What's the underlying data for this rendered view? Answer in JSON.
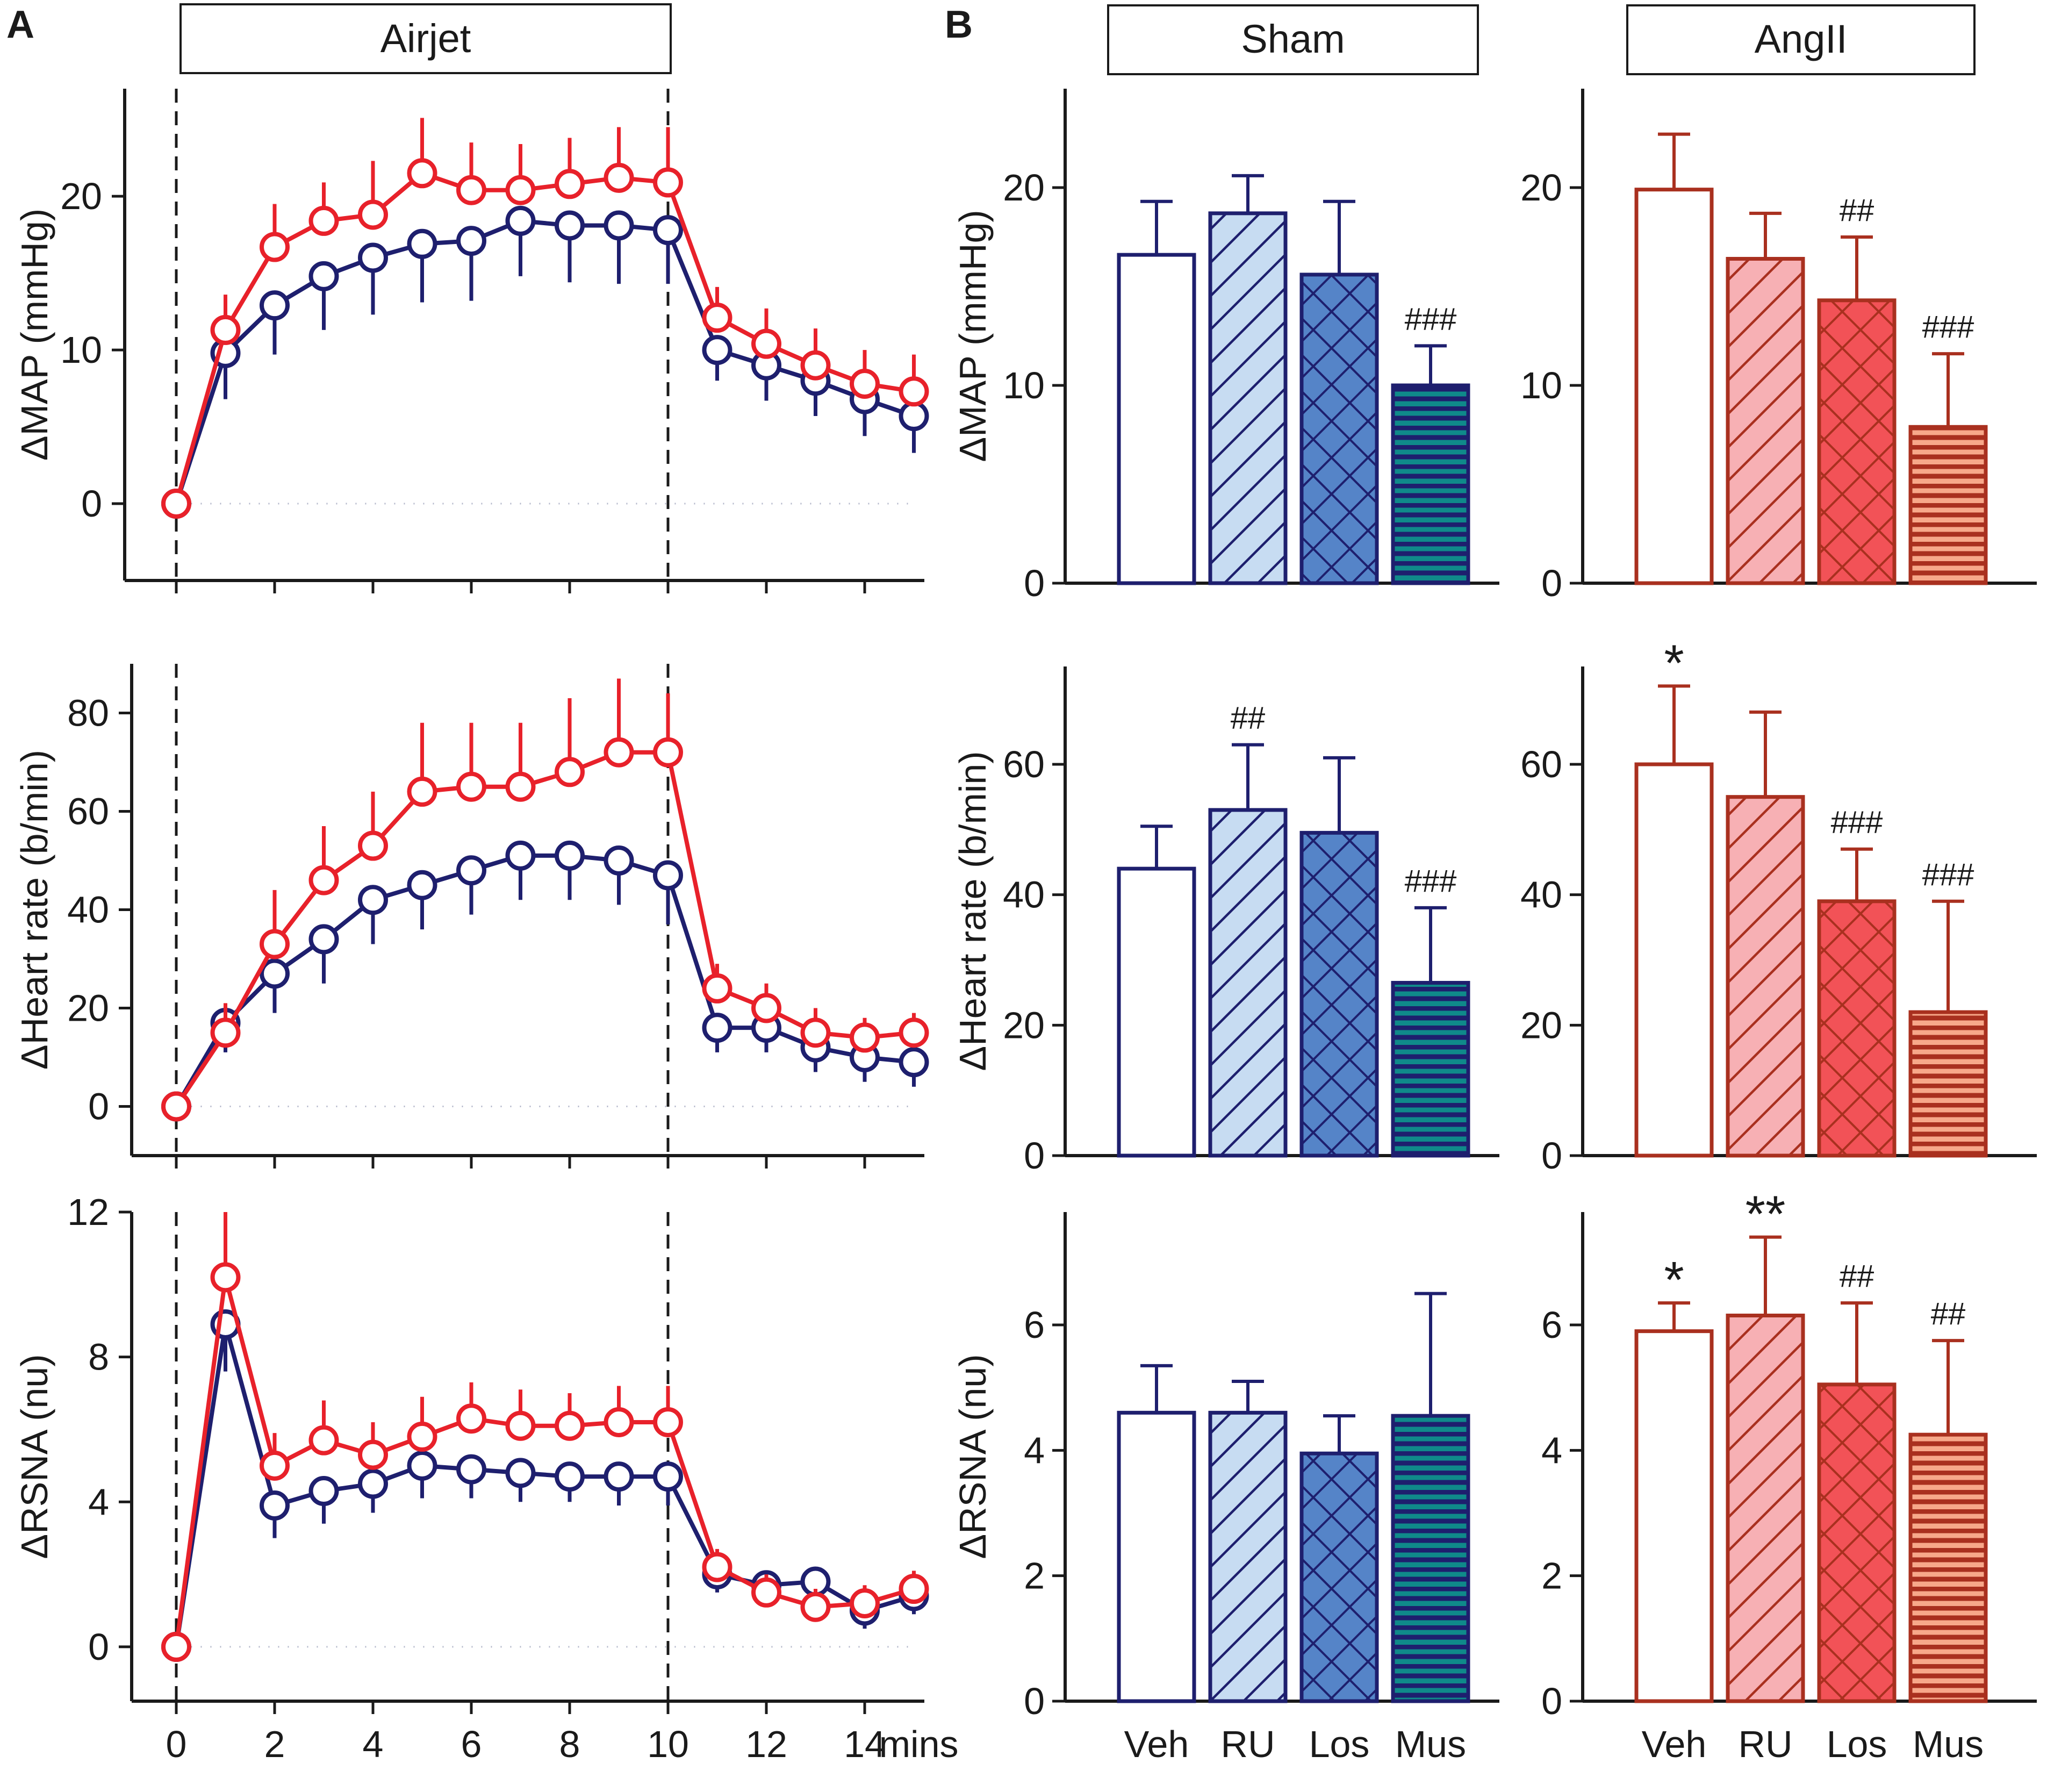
{
  "panels": {
    "A": "A",
    "B": "B"
  },
  "headers": {
    "airjet": "Airjet",
    "sham": "Sham",
    "angii": "AngII"
  },
  "colors": {
    "angii": "#e8212a",
    "sham": "#1e1f6e",
    "angii_bar_edge": "#a9301f",
    "sham_bar_edge": "#1e1f6e"
  },
  "chart_data": [
    {
      "id": "A-map",
      "type": "line",
      "title": "",
      "xlabel": "mins",
      "ylabel": "ΔMAP (mmHg)",
      "xlim": [
        -1,
        15.2
      ],
      "ylim": [
        -5,
        27
      ],
      "x_ticks": [
        0,
        2,
        4,
        6,
        8,
        10,
        12,
        14
      ],
      "x_tick_labels": [],
      "y_ticks": [
        0,
        10,
        20
      ],
      "y_tick_labels": [
        "0",
        "10",
        "20"
      ],
      "stimulus_on": 0,
      "stimulus_off": 10,
      "x": [
        0,
        1,
        2,
        3,
        4,
        5,
        6,
        7,
        8,
        9,
        10,
        11,
        12,
        13,
        14,
        15
      ],
      "series": [
        {
          "name": "Sham",
          "color_key": "sham",
          "err_dir": -1,
          "values": [
            0,
            9.8,
            12.9,
            14.8,
            16.0,
            16.9,
            17.1,
            18.4,
            18.1,
            18.1,
            17.8,
            10.0,
            9.0,
            8.0,
            6.8,
            5.7
          ],
          "errors": [
            0,
            3.0,
            3.2,
            3.5,
            3.7,
            3.8,
            3.9,
            3.6,
            3.7,
            3.8,
            3.5,
            2.0,
            2.3,
            2.3,
            2.4,
            2.4
          ]
        },
        {
          "name": "AngII",
          "color_key": "angii",
          "err_dir": 1,
          "values": [
            0,
            11.3,
            16.7,
            18.4,
            18.8,
            21.5,
            20.4,
            20.4,
            20.8,
            21.2,
            20.9,
            12.1,
            10.4,
            9.0,
            7.8,
            7.3
          ],
          "errors": [
            0,
            2.3,
            2.8,
            2.5,
            3.5,
            3.6,
            3.1,
            3.0,
            3.0,
            3.3,
            3.6,
            2.0,
            2.3,
            2.4,
            2.2,
            2.4
          ]
        }
      ]
    },
    {
      "id": "A-hr",
      "type": "line",
      "title": "",
      "xlabel": "mins",
      "ylabel": "ΔHeart rate (b/min)",
      "xlim": [
        -1,
        15.2
      ],
      "ylim": [
        -10,
        90
      ],
      "x_ticks": [
        0,
        2,
        4,
        6,
        8,
        10,
        12,
        14
      ],
      "x_tick_labels": [],
      "y_ticks": [
        0,
        20,
        40,
        60,
        80
      ],
      "y_tick_labels": [
        "0",
        "20",
        "40",
        "60",
        "80"
      ],
      "stimulus_on": 0,
      "stimulus_off": 10,
      "x": [
        0,
        1,
        2,
        3,
        4,
        5,
        6,
        7,
        8,
        9,
        10,
        11,
        12,
        13,
        14,
        15
      ],
      "series": [
        {
          "name": "Sham",
          "color_key": "sham",
          "err_dir": -1,
          "values": [
            0,
            17,
            27,
            34,
            42,
            45,
            48,
            51,
            51,
            50,
            47,
            16,
            16,
            12,
            10,
            9
          ],
          "errors": [
            0,
            6,
            8,
            9,
            9,
            9,
            9,
            9,
            9,
            9,
            10,
            5,
            5,
            5,
            5,
            5
          ]
        },
        {
          "name": "AngII",
          "color_key": "angii",
          "err_dir": 1,
          "values": [
            0,
            15,
            33,
            46,
            53,
            64,
            65,
            65,
            68,
            72,
            72,
            24,
            20,
            15,
            14,
            15
          ],
          "errors": [
            0,
            6,
            11,
            11,
            11,
            14,
            13,
            13,
            15,
            15,
            12,
            5,
            5,
            5,
            4,
            4
          ]
        }
      ]
    },
    {
      "id": "A-rsna",
      "type": "line",
      "title": "",
      "xlabel": "mins",
      "ylabel": "ΔRSNA (nu)",
      "xlim": [
        -1,
        15.2
      ],
      "ylim": [
        -1.5,
        12
      ],
      "x_ticks": [
        0,
        2,
        4,
        6,
        8,
        10,
        12,
        14
      ],
      "x_tick_labels": [
        "0",
        "2",
        "4",
        "6",
        "8",
        "10",
        "12",
        "14"
      ],
      "x_unit_label": "mins",
      "y_ticks": [
        0,
        4,
        8,
        12
      ],
      "y_tick_labels": [
        "0",
        "4",
        "8",
        "12"
      ],
      "stimulus_on": 0,
      "stimulus_off": 10,
      "x": [
        0,
        1,
        2,
        3,
        4,
        5,
        6,
        7,
        8,
        9,
        10,
        11,
        12,
        13,
        14,
        15
      ],
      "series": [
        {
          "name": "Sham",
          "color_key": "sham",
          "err_dir": -1,
          "values": [
            0,
            8.9,
            3.9,
            4.3,
            4.5,
            5.0,
            4.9,
            4.8,
            4.7,
            4.7,
            4.7,
            2.0,
            1.7,
            1.8,
            1.0,
            1.4
          ],
          "errors": [
            0,
            1.3,
            0.9,
            0.9,
            0.8,
            0.9,
            0.8,
            0.8,
            0.7,
            0.8,
            0.8,
            0.5,
            0.5,
            0.5,
            0.5,
            0.5
          ]
        },
        {
          "name": "AngII",
          "color_key": "angii",
          "err_dir": 1,
          "values": [
            0,
            10.2,
            5.0,
            5.7,
            5.3,
            5.8,
            6.3,
            6.1,
            6.1,
            6.2,
            6.2,
            2.2,
            1.5,
            1.1,
            1.2,
            1.6
          ],
          "errors": [
            0,
            1.8,
            0.9,
            1.1,
            0.9,
            1.1,
            1.0,
            1.0,
            0.9,
            1.0,
            1.0,
            0.5,
            0.5,
            0.5,
            0.5,
            0.5
          ]
        }
      ]
    },
    {
      "id": "B-sham-map",
      "type": "bar",
      "group": "Sham",
      "ylabel": "ΔMAP (mmHg)",
      "ylim": [
        0,
        25
      ],
      "y_ticks": [
        0,
        10,
        20
      ],
      "y_tick_labels": [
        "0",
        "10",
        "20"
      ],
      "categories": [
        "Veh",
        "RU",
        "Los",
        "Mus"
      ],
      "show_categories": false,
      "values": [
        16.6,
        18.7,
        15.6,
        10.0
      ],
      "errors": [
        2.7,
        1.9,
        3.7,
        2.0
      ],
      "annotations": [
        "",
        "",
        "",
        "###"
      ]
    },
    {
      "id": "B-angii-map",
      "type": "bar",
      "group": "AngII",
      "ylabel": "",
      "ylim": [
        0,
        25
      ],
      "y_ticks": [
        0,
        10,
        20
      ],
      "y_tick_labels": [
        "0",
        "10",
        "20"
      ],
      "categories": [
        "Veh",
        "RU",
        "Los",
        "Mus"
      ],
      "show_categories": false,
      "values": [
        19.9,
        16.4,
        14.3,
        7.9
      ],
      "errors": [
        2.8,
        2.3,
        3.2,
        3.7
      ],
      "annotations": [
        "",
        "",
        "##",
        "###"
      ]
    },
    {
      "id": "B-sham-hr",
      "type": "bar",
      "group": "Sham",
      "ylabel": "ΔHeart rate (b/min)",
      "ylim": [
        0,
        75
      ],
      "y_ticks": [
        0,
        20,
        40,
        60
      ],
      "y_tick_labels": [
        "0",
        "20",
        "40",
        "60"
      ],
      "categories": [
        "Veh",
        "RU",
        "Los",
        "Mus"
      ],
      "show_categories": false,
      "values": [
        44,
        53,
        49.5,
        26.5
      ],
      "errors": [
        6.5,
        10,
        11.5,
        11.5
      ],
      "annotations": [
        "",
        "##",
        "",
        "###"
      ]
    },
    {
      "id": "B-angii-hr",
      "type": "bar",
      "group": "AngII",
      "ylabel": "",
      "ylim": [
        0,
        75
      ],
      "y_ticks": [
        0,
        20,
        40,
        60
      ],
      "y_tick_labels": [
        "0",
        "20",
        "40",
        "60"
      ],
      "categories": [
        "Veh",
        "RU",
        "Los",
        "Mus"
      ],
      "show_categories": false,
      "values": [
        60,
        55,
        39,
        22
      ],
      "errors": [
        12,
        13,
        8,
        17
      ],
      "annotations": [
        "*",
        "",
        "###",
        "###"
      ]
    },
    {
      "id": "B-sham-rsna",
      "type": "bar",
      "group": "Sham",
      "ylabel": "ΔRSNA (nu)",
      "ylim": [
        0,
        7.8
      ],
      "y_ticks": [
        0,
        2,
        4,
        6
      ],
      "y_tick_labels": [
        "0",
        "2",
        "4",
        "6"
      ],
      "categories": [
        "Veh",
        "RU",
        "Los",
        "Mus"
      ],
      "show_categories": true,
      "values": [
        4.6,
        4.6,
        3.95,
        4.55
      ],
      "errors": [
        0.75,
        0.5,
        0.6,
        1.95
      ],
      "annotations": [
        "",
        "",
        "",
        ""
      ]
    },
    {
      "id": "B-angii-rsna",
      "type": "bar",
      "group": "AngII",
      "ylabel": "",
      "ylim": [
        0,
        7.8
      ],
      "y_ticks": [
        0,
        2,
        4,
        6
      ],
      "y_tick_labels": [
        "0",
        "2",
        "4",
        "6"
      ],
      "categories": [
        "Veh",
        "RU",
        "Los",
        "Mus"
      ],
      "show_categories": true,
      "values": [
        5.9,
        6.15,
        5.05,
        4.25
      ],
      "errors": [
        0.45,
        1.25,
        1.3,
        1.5
      ],
      "annotations": [
        "*",
        "**",
        "##",
        "##"
      ]
    }
  ]
}
